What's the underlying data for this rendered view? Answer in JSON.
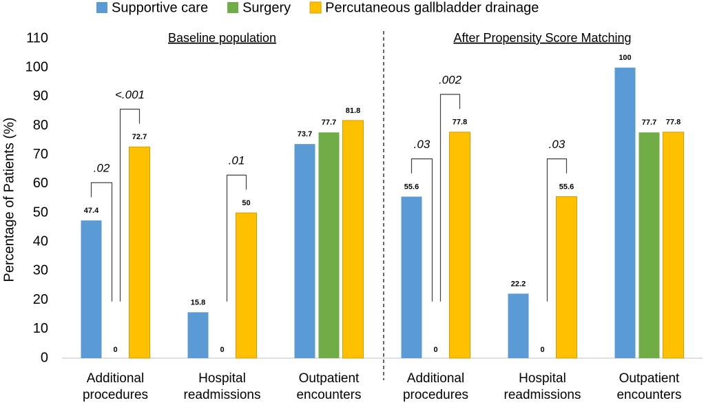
{
  "chart_data": {
    "type": "bar",
    "y_label": "Percentage of Patients (%)",
    "panels": [
      "Baseline population",
      "After Propensity Score Matching"
    ],
    "categories": [
      "Additional procedures",
      "Hospital readmissions",
      "Outpatient encounters",
      "Additional procedures",
      "Hospital readmissions",
      "Outpatient encounters"
    ],
    "series": [
      {
        "name": "Supportive care",
        "color": "#5b9bd5",
        "values": [
          47.4,
          15.8,
          73.7,
          55.6,
          22.2,
          100
        ]
      },
      {
        "name": "Surgery",
        "color": "#70ad47",
        "values": [
          0,
          0,
          77.7,
          0,
          0,
          77.7
        ]
      },
      {
        "name": "Percutaneous gallbladder drainage",
        "color": "#ffc000",
        "values": [
          72.7,
          50,
          81.8,
          77.8,
          55.6,
          77.8
        ]
      }
    ],
    "annotations": [
      {
        "text": ".02",
        "category": 0,
        "between": [
          0,
          1
        ]
      },
      {
        "text": "<.001",
        "category": 0,
        "between": [
          1,
          2
        ]
      },
      {
        "text": ".01",
        "category": 1,
        "between": [
          1,
          2
        ]
      },
      {
        "text": ".03",
        "category": 3,
        "between": [
          0,
          1
        ]
      },
      {
        "text": ".002",
        "category": 3,
        "between": [
          1,
          2
        ]
      },
      {
        "text": ".03",
        "category": 4,
        "between": [
          1,
          2
        ]
      }
    ],
    "ylim": [
      0,
      110
    ],
    "yticks": [
      0,
      10,
      20,
      30,
      40,
      50,
      60,
      70,
      80,
      90,
      100,
      110
    ],
    "legend": "top"
  }
}
